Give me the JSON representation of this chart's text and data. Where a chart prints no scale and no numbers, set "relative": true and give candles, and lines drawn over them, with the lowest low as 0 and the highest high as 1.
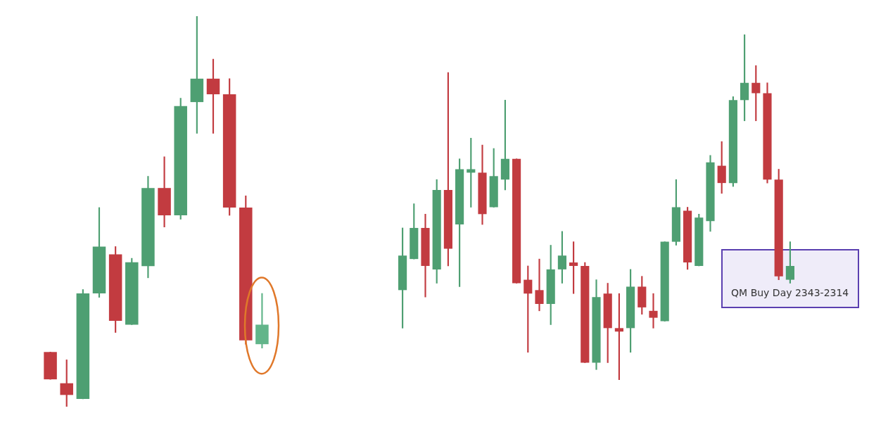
{
  "chart_data": [
    {
      "type": "candlestick",
      "relative": true,
      "categories": [
        null,
        null,
        null,
        null,
        null,
        null,
        null,
        null,
        null,
        null,
        null,
        null,
        null,
        null
      ],
      "ohlc": [
        [
          0.14,
          0.14,
          0.07,
          0.07
        ],
        [
          0.06,
          0.12,
          0,
          0.03
        ],
        [
          0.02,
          0.3,
          0.02,
          0.29
        ],
        [
          0.29,
          0.51,
          0.28,
          0.41
        ],
        [
          0.39,
          0.41,
          0.19,
          0.22
        ],
        [
          0.21,
          0.38,
          0.21,
          0.37
        ],
        [
          0.36,
          0.59,
          0.33,
          0.56
        ],
        [
          0.56,
          0.64,
          0.46,
          0.49
        ],
        [
          0.49,
          0.79,
          0.48,
          0.77
        ],
        [
          0.78,
          1,
          0.7,
          0.84
        ],
        [
          0.84,
          0.89,
          0.7,
          0.8
        ],
        [
          0.8,
          0.84,
          0.49,
          0.51
        ],
        [
          0.51,
          0.54,
          0.16,
          0.17
        ],
        [
          0.16,
          0.29,
          0.15,
          0.21
        ]
      ],
      "colors": [
        "#c23b40",
        "#c23b40",
        "#4e9f72",
        "#4e9f72",
        "#c23b40",
        "#4e9f72",
        "#4e9f72",
        "#c23b40",
        "#4e9f72",
        "#4e9f72",
        "#c23b40",
        "#c23b40",
        "#c23b40",
        "#62b58a"
      ]
    },
    {
      "type": "candlestick",
      "relative": true,
      "categories": [
        null,
        null,
        null,
        null,
        null,
        null,
        null,
        null,
        null,
        null,
        null,
        null,
        null,
        null,
        null,
        null,
        null,
        null,
        null,
        null,
        null,
        null,
        null,
        null,
        null,
        null,
        null,
        null,
        null,
        null,
        null,
        null,
        null,
        null,
        null
      ],
      "ohlc": [
        [
          0.26,
          0.44,
          0.15,
          0.36
        ],
        [
          0.35,
          0.51,
          0.35,
          0.44
        ],
        [
          0.44,
          0.48,
          0.24,
          0.33
        ],
        [
          0.32,
          0.58,
          0.28,
          0.55
        ],
        [
          0.55,
          0.89,
          0.33,
          0.38
        ],
        [
          0.45,
          0.64,
          0.27,
          0.61
        ],
        [
          0.6,
          0.7,
          0.5,
          0.61
        ],
        [
          0.6,
          0.68,
          0.45,
          0.48
        ],
        [
          0.5,
          0.67,
          0.5,
          0.59
        ],
        [
          0.58,
          0.81,
          0.55,
          0.64
        ],
        [
          0.64,
          0.64,
          0.28,
          0.28
        ],
        [
          0.29,
          0.33,
          0.08,
          0.25
        ],
        [
          0.26,
          0.35,
          0.2,
          0.22
        ],
        [
          0.22,
          0.39,
          0.16,
          0.32
        ],
        [
          0.32,
          0.43,
          0.28,
          0.36
        ],
        [
          0.34,
          0.4,
          0.25,
          0.33
        ],
        [
          0.33,
          0.34,
          0.05,
          0.05
        ],
        [
          0.05,
          0.29,
          0.03,
          0.24
        ],
        [
          0.25,
          0.28,
          0.05,
          0.15
        ],
        [
          0.15,
          0.25,
          0,
          0.14
        ],
        [
          0.15,
          0.32,
          0.08,
          0.27
        ],
        [
          0.27,
          0.3,
          0.19,
          0.21
        ],
        [
          0.2,
          0.25,
          0.15,
          0.18
        ],
        [
          0.17,
          0.4,
          0.17,
          0.4
        ],
        [
          0.4,
          0.58,
          0.39,
          0.5
        ],
        [
          0.49,
          0.5,
          0.32,
          0.34
        ],
        [
          0.33,
          0.48,
          0.33,
          0.47
        ],
        [
          0.46,
          0.65,
          0.43,
          0.63
        ],
        [
          0.62,
          0.69,
          0.54,
          0.57
        ],
        [
          0.57,
          0.82,
          0.56,
          0.81
        ],
        [
          0.81,
          1,
          0.75,
          0.86
        ],
        [
          0.86,
          0.91,
          0.75,
          0.83
        ],
        [
          0.83,
          0.86,
          0.57,
          0.58
        ],
        [
          0.58,
          0.61,
          0.29,
          0.3
        ],
        [
          0.29,
          0.4,
          0.28,
          0.33
        ]
      ],
      "colors": [
        "#4e9f72",
        "#4e9f72",
        "#c23b40",
        "#4e9f72",
        "#c23b40",
        "#4e9f72",
        "#4e9f72",
        "#c23b40",
        "#4e9f72",
        "#4e9f72",
        "#c23b40",
        "#c23b40",
        "#c23b40",
        "#4e9f72",
        "#4e9f72",
        "#c23b40",
        "#c23b40",
        "#4e9f72",
        "#c23b40",
        "#c23b40",
        "#4e9f72",
        "#c23b40",
        "#c23b40",
        "#4e9f72",
        "#4e9f72",
        "#c23b40",
        "#4e9f72",
        "#4e9f72",
        "#c23b40",
        "#4e9f72",
        "#4e9f72",
        "#c23b40",
        "#c23b40",
        "#c23b40",
        "#4e9f72"
      ],
      "annotations": [
        "QM Buy Day 2343-2314"
      ]
    }
  ]
}
